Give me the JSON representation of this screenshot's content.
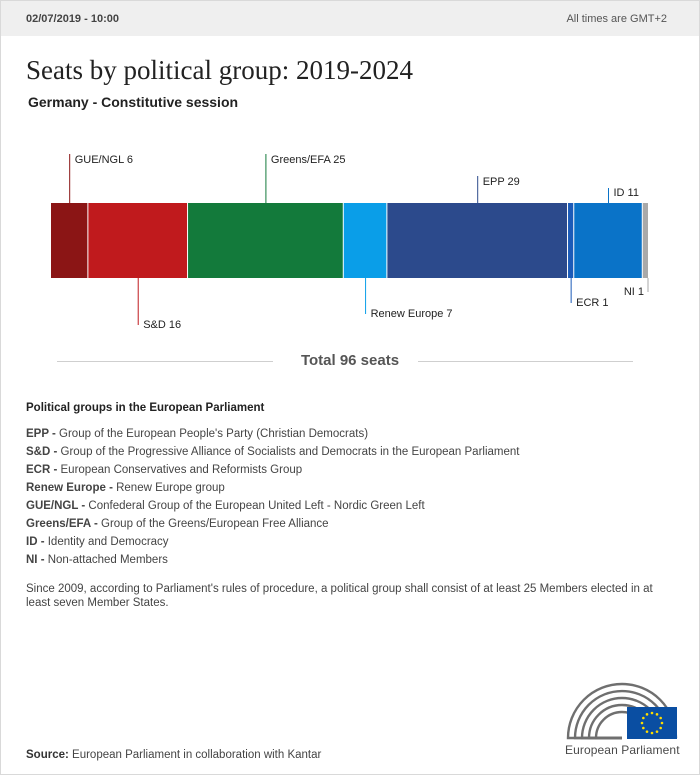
{
  "header": {
    "date": "02/07/2019 - 10:00",
    "timezone": "All times are GMT+2"
  },
  "title": "Seats by political group: 2019-2024",
  "subtitle": "Germany - Constitutive session",
  "chart_data": {
    "type": "bar",
    "orientation": "horizontal-stacked",
    "total": 96,
    "total_label": "Total 96 seats",
    "categories": [
      "GUE/NGL",
      "S&D",
      "Greens/EFA",
      "Renew Europe",
      "EPP",
      "ECR",
      "ID",
      "NI"
    ],
    "values": [
      6,
      16,
      25,
      7,
      29,
      1,
      11,
      1
    ],
    "colors": [
      "#8b1515",
      "#c01a1d",
      "#137a3b",
      "#0a9ee8",
      "#2c4a8c",
      "#1c5bb8",
      "#0a73c8",
      "#a9a9a9"
    ],
    "labels": [
      "GUE/NGL 6",
      "S&D 16",
      "Greens/EFA 25",
      "Renew Europe 7",
      "EPP 29",
      "ECR 1",
      "ID 11",
      "NI 1"
    ],
    "label_positions": [
      "above",
      "below",
      "above",
      "below",
      "above",
      "below",
      "above",
      "below"
    ]
  },
  "legend": {
    "title": "Political groups in the European Parliament",
    "items": [
      {
        "abbr": "EPP -",
        "text": "Group of the European People's Party (Christian Democrats)"
      },
      {
        "abbr": "S&D -",
        "text": "Group of the Progressive Alliance of Socialists and Democrats in the European Parliament"
      },
      {
        "abbr": "ECR -",
        "text": "European Conservatives and Reformists Group"
      },
      {
        "abbr": "Renew Europe -",
        "text": "Renew Europe group"
      },
      {
        "abbr": "GUE/NGL -",
        "text": "Confederal Group of the European United Left - Nordic Green Left"
      },
      {
        "abbr": "Greens/EFA -",
        "text": "Group of the Greens/European Free Alliance"
      },
      {
        "abbr": "ID -",
        "text": "Identity and Democracy"
      },
      {
        "abbr": "NI -",
        "text": "Non-attached Members"
      }
    ]
  },
  "note": "Since 2009, according to Parliament's rules of procedure, a political group shall consist of at least 25 Members elected in at least seven Member States.",
  "source": {
    "label": "Source:",
    "text": "European Parliament in collaboration with Kantar"
  },
  "logo": {
    "text": "European Parliament",
    "icon": "european-parliament-hemicycle-icon",
    "flag_color": "#0a4ea2",
    "star_color": "#ffdd00"
  }
}
